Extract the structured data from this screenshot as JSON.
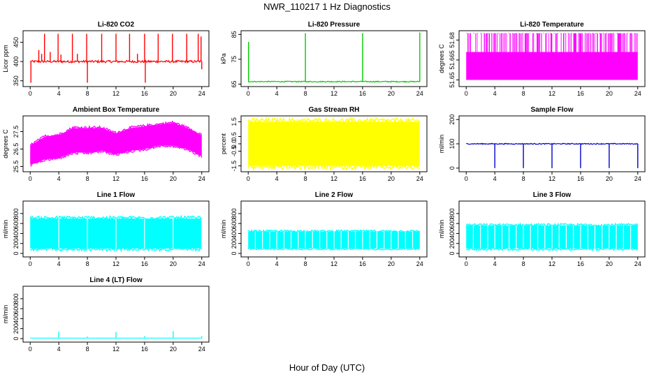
{
  "figure": {
    "title": "NWR_110217  1 Hz Diagnostics",
    "xlabel": "Hour of Day (UTC)"
  },
  "chart_data": [
    {
      "type": "line",
      "title": "Li-820 CO2",
      "ylabel": "Licor ppm",
      "color": "#ff0000",
      "xlim": [
        -1,
        25
      ],
      "ylim": [
        335,
        480
      ],
      "xticks": [
        0,
        4,
        8,
        12,
        16,
        20,
        24
      ],
      "yticks": [
        350,
        400,
        450
      ],
      "ytick_labels": [
        "350",
        "400",
        "450"
      ],
      "pattern": "spikes",
      "base": 400,
      "noise": 3,
      "spikes": [
        {
          "x": 1.2,
          "y": 430
        },
        {
          "x": 1.6,
          "y": 420
        },
        {
          "x": 2.0,
          "y": 472
        },
        {
          "x": 2.8,
          "y": 425
        },
        {
          "x": 3.9,
          "y": 472
        },
        {
          "x": 4.3,
          "y": 418
        },
        {
          "x": 5.9,
          "y": 472
        },
        {
          "x": 6.6,
          "y": 420
        },
        {
          "x": 7.9,
          "y": 472
        },
        {
          "x": 8.0,
          "y": 345
        },
        {
          "x": 10.0,
          "y": 472
        },
        {
          "x": 12.0,
          "y": 472
        },
        {
          "x": 13.9,
          "y": 472
        },
        {
          "x": 15.0,
          "y": 420
        },
        {
          "x": 16.0,
          "y": 472
        },
        {
          "x": 16.1,
          "y": 345
        },
        {
          "x": 17.9,
          "y": 472
        },
        {
          "x": 19.9,
          "y": 472
        },
        {
          "x": 21.9,
          "y": 472
        },
        {
          "x": 23.5,
          "y": 472
        },
        {
          "x": 23.9,
          "y": 465
        },
        {
          "x": 0.1,
          "y": 345
        },
        {
          "x": 24.0,
          "y": 380
        }
      ]
    },
    {
      "type": "line",
      "title": "Li-820 Pressure",
      "ylabel": "kPa",
      "color": "#00cc00",
      "xlim": [
        -1,
        25
      ],
      "ylim": [
        64,
        86.5
      ],
      "xticks": [
        0,
        4,
        8,
        12,
        16,
        20,
        24
      ],
      "yticks": [
        65,
        75,
        85
      ],
      "ytick_labels": [
        "65",
        "75",
        "85"
      ],
      "pattern": "spikes",
      "base": 66,
      "noise": 0.2,
      "spikes": [
        {
          "x": 0.05,
          "y": 82
        },
        {
          "x": 8.0,
          "y": 85.5
        },
        {
          "x": 16.0,
          "y": 85.5
        },
        {
          "x": 24.0,
          "y": 85.8
        }
      ]
    },
    {
      "type": "area",
      "title": "Li-820 Temperature",
      "ylabel": "degrees C",
      "color": "#ff00ff",
      "xlim": [
        -1,
        25
      ],
      "ylim": [
        51.645,
        51.687
      ],
      "xticks": [
        0,
        4,
        8,
        12,
        16,
        20,
        24
      ],
      "yticks": [
        51.65,
        51.665,
        51.68
      ],
      "ytick_labels": [
        "51.65",
        "51.665",
        "51.68"
      ],
      "pattern": "discrete",
      "levels": [
        51.65,
        51.671,
        51.685
      ]
    },
    {
      "type": "area",
      "title": "Ambient Box Temperature",
      "ylabel": "degrees C",
      "color": "#ff00ff",
      "xlim": [
        -1,
        25
      ],
      "ylim": [
        25.2,
        28.4
      ],
      "xticks": [
        0,
        4,
        8,
        12,
        16,
        20,
        24
      ],
      "yticks": [
        25.5,
        26.5,
        27.5
      ],
      "ytick_labels": [
        "25.5",
        "26.5",
        "27.5"
      ],
      "pattern": "band",
      "band": [
        {
          "x": 0,
          "low": 25.6,
          "high": 26.7
        },
        {
          "x": 2,
          "low": 25.9,
          "high": 27.2
        },
        {
          "x": 4,
          "low": 26.0,
          "high": 27.3
        },
        {
          "x": 6,
          "low": 26.3,
          "high": 27.7
        },
        {
          "x": 8,
          "low": 26.3,
          "high": 27.7
        },
        {
          "x": 10,
          "low": 26.4,
          "high": 27.7
        },
        {
          "x": 12,
          "low": 26.2,
          "high": 27.4
        },
        {
          "x": 14,
          "low": 26.4,
          "high": 27.7
        },
        {
          "x": 16,
          "low": 26.5,
          "high": 27.8
        },
        {
          "x": 18,
          "low": 26.7,
          "high": 27.9
        },
        {
          "x": 20,
          "low": 26.7,
          "high": 28.0
        },
        {
          "x": 22,
          "low": 26.5,
          "high": 27.7
        },
        {
          "x": 24,
          "low": 26.1,
          "high": 27.3
        }
      ]
    },
    {
      "type": "area",
      "title": "Gas Stream RH",
      "ylabel": "percent",
      "color": "#ffff00",
      "xlim": [
        -1,
        25
      ],
      "ylim": [
        -1.9,
        1.9
      ],
      "xticks": [
        0,
        4,
        8,
        12,
        16,
        20,
        24
      ],
      "yticks": [
        -1.5,
        -0.5,
        0.0,
        0.5,
        1.5
      ],
      "ytick_labels": [
        "-1.5",
        "-0.5",
        "0.0",
        "0.5",
        "1.5"
      ],
      "pattern": "band",
      "band": [
        {
          "x": 0,
          "low": -1.5,
          "high": 1.5
        },
        {
          "x": 12,
          "low": -1.5,
          "high": 1.5
        },
        {
          "x": 24,
          "low": -1.5,
          "high": 1.5
        }
      ]
    },
    {
      "type": "line",
      "title": "Sample Flow",
      "ylabel": "ml/min",
      "color": "#0000cc",
      "xlim": [
        -1,
        25
      ],
      "ylim": [
        -15,
        215
      ],
      "xticks": [
        0,
        4,
        8,
        12,
        16,
        20,
        24
      ],
      "yticks": [
        0,
        100,
        200
      ],
      "ytick_labels": [
        "0",
        "100",
        "200"
      ],
      "pattern": "spikes",
      "base": 100,
      "noise": 2,
      "spikes": [
        {
          "x": 4.0,
          "y": 0
        },
        {
          "x": 8.0,
          "y": 0
        },
        {
          "x": 12.0,
          "y": 0
        },
        {
          "x": 16.0,
          "y": 0
        },
        {
          "x": 20.0,
          "y": 0
        },
        {
          "x": 24.0,
          "y": 0
        }
      ]
    },
    {
      "type": "area",
      "title": "Line 1 Flow",
      "ylabel": "ml/min",
      "color": "#00ffff",
      "xlim": [
        -1,
        25
      ],
      "ylim": [
        -70,
        1050
      ],
      "xticks": [
        0,
        4,
        8,
        12,
        16,
        20,
        24
      ],
      "yticks": [
        0,
        200,
        400,
        600,
        800
      ],
      "ytick_labels": [
        "0",
        "200",
        "400",
        "600",
        "800"
      ],
      "pattern": "band",
      "band": [
        {
          "x": 0,
          "low": 100,
          "high": 700
        },
        {
          "x": 24,
          "low": 100,
          "high": 700
        }
      ],
      "gaps": [
        4,
        8,
        12,
        16,
        20,
        24
      ]
    },
    {
      "type": "area",
      "title": "Line 2 Flow",
      "ylabel": "ml/min",
      "color": "#00ffff",
      "xlim": [
        -1,
        25
      ],
      "ylim": [
        -70,
        1050
      ],
      "xticks": [
        0,
        4,
        8,
        12,
        16,
        20,
        24
      ],
      "yticks": [
        0,
        200,
        400,
        600,
        800
      ],
      "ytick_labels": [
        "0",
        "200",
        "400",
        "600",
        "800"
      ],
      "pattern": "band",
      "band": [
        {
          "x": 0,
          "low": 100,
          "high": 440
        },
        {
          "x": 24,
          "low": 100,
          "high": 440
        }
      ],
      "gaps": [
        1,
        2,
        3,
        4,
        5,
        6,
        7,
        8,
        9,
        10,
        11,
        12,
        13,
        14,
        15,
        16,
        17,
        18,
        19,
        20,
        21,
        22,
        23
      ]
    },
    {
      "type": "area",
      "title": "Line 3 Flow",
      "ylabel": "ml/min",
      "color": "#00ffff",
      "xlim": [
        -1,
        25
      ],
      "ylim": [
        -70,
        1050
      ],
      "xticks": [
        0,
        4,
        8,
        12,
        16,
        20,
        24
      ],
      "yticks": [
        0,
        200,
        400,
        600,
        800
      ],
      "ytick_labels": [
        "0",
        "200",
        "400",
        "600",
        "800"
      ],
      "pattern": "band",
      "band": [
        {
          "x": 0,
          "low": 100,
          "high": 560
        },
        {
          "x": 24,
          "low": 100,
          "high": 560
        }
      ],
      "gaps": [
        1,
        2,
        3,
        4,
        5,
        6,
        7,
        8,
        9,
        10,
        11,
        12,
        13,
        14,
        15,
        16,
        17,
        18,
        19,
        20,
        21,
        22,
        23
      ]
    },
    {
      "type": "line",
      "title": "Line 4 (LT) Flow",
      "ylabel": "ml/min",
      "color": "#00ffff",
      "xlim": [
        -1,
        25
      ],
      "ylim": [
        -70,
        1050
      ],
      "xticks": [
        0,
        4,
        8,
        12,
        16,
        20,
        24
      ],
      "yticks": [
        0,
        200,
        400,
        600,
        800
      ],
      "ytick_labels": [
        "0",
        "200",
        "400",
        "600",
        "800"
      ],
      "pattern": "spikes",
      "base": 10,
      "noise": 1,
      "spikes": [
        {
          "x": 4.0,
          "y": 140
        },
        {
          "x": 8.0,
          "y": 40
        },
        {
          "x": 12.0,
          "y": 130
        },
        {
          "x": 16.0,
          "y": 50
        },
        {
          "x": 20.0,
          "y": 150
        },
        {
          "x": 24.0,
          "y": 50
        }
      ]
    }
  ]
}
